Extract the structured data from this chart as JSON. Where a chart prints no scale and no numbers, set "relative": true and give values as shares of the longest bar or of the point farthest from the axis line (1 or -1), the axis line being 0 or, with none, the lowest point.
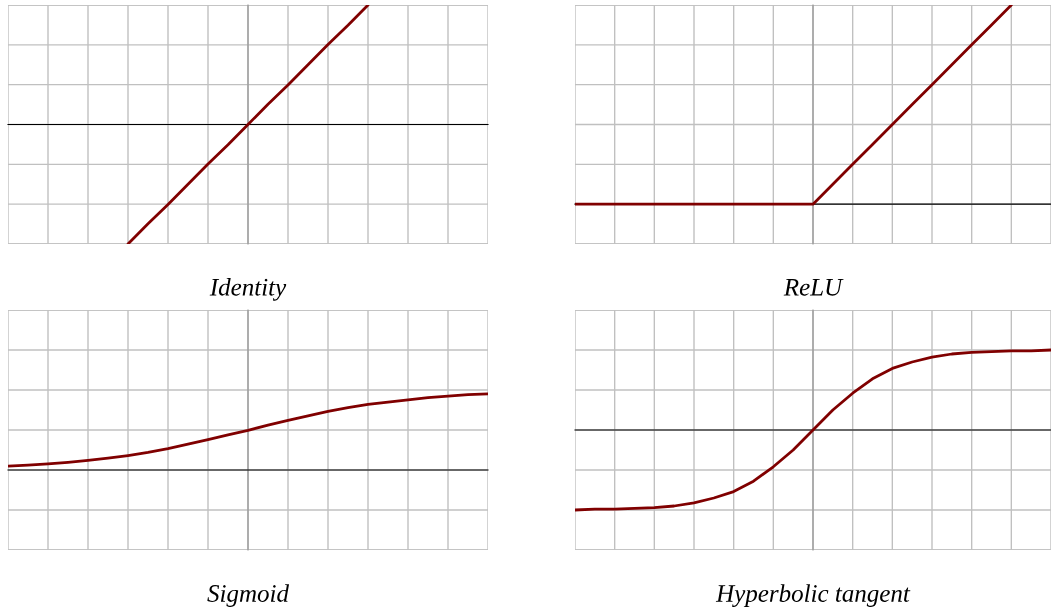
{
  "chart_data": [
    {
      "type": "line",
      "title": "Identity",
      "relative": true,
      "grid": true,
      "tick_labels": false,
      "categories": [
        null,
        null,
        null,
        null,
        null,
        null,
        null,
        null,
        null,
        null,
        null,
        null,
        null,
        null,
        null,
        null,
        null,
        null,
        null,
        null,
        null,
        null,
        null,
        null,
        null
      ],
      "series": [
        {
          "color": "#800000",
          "values": [
            null,
            null,
            null,
            null,
            null,
            null,
            -1,
            -0.83,
            -0.67,
            -0.5,
            -0.33,
            -0.17,
            0,
            0.17,
            0.33,
            0.5,
            0.67,
            0.83,
            1,
            null,
            null,
            null,
            null,
            null,
            null
          ]
        }
      ]
    },
    {
      "type": "line",
      "title": "ReLU",
      "relative": true,
      "grid": true,
      "tick_labels": false,
      "categories": [
        null,
        null,
        null,
        null,
        null,
        null,
        null,
        null,
        null,
        null,
        null,
        null,
        null,
        null,
        null,
        null,
        null,
        null,
        null,
        null,
        null,
        null,
        null,
        null,
        null
      ],
      "series": [
        {
          "color": "#800000",
          "values": [
            0,
            0,
            0,
            0,
            0,
            0,
            0,
            0,
            0,
            0,
            0,
            0,
            0,
            0.1,
            0.2,
            0.3,
            0.4,
            0.5,
            0.6,
            0.7,
            0.8,
            0.9,
            1,
            null,
            null
          ]
        }
      ]
    },
    {
      "type": "line",
      "title": "Sigmoid",
      "relative": true,
      "grid": true,
      "tick_labels": false,
      "categories": [
        null,
        null,
        null,
        null,
        null,
        null,
        null,
        null,
        null,
        null,
        null,
        null,
        null,
        null,
        null,
        null,
        null,
        null,
        null,
        null,
        null,
        null,
        null,
        null,
        null
      ],
      "series": [
        {
          "color": "#800000",
          "values": [
            0.05,
            0.063,
            0.08,
            0.1,
            0.125,
            0.155,
            0.19,
            0.23,
            0.28,
            0.34,
            0.4,
            0.46,
            0.52,
            0.59,
            0.65,
            0.71,
            0.77,
            0.82,
            0.86,
            0.89,
            0.92,
            0.95,
            0.97,
            0.99,
            1
          ]
        }
      ]
    },
    {
      "type": "line",
      "title": "Hyperbolic tangent",
      "relative": true,
      "grid": true,
      "tick_labels": false,
      "categories": [
        null,
        null,
        null,
        null,
        null,
        null,
        null,
        null,
        null,
        null,
        null,
        null,
        null,
        null,
        null,
        null,
        null,
        null,
        null,
        null,
        null,
        null,
        null,
        null,
        null
      ],
      "series": [
        {
          "color": "#800000",
          "values": [
            -1,
            -0.99,
            -0.99,
            -0.98,
            -0.97,
            -0.95,
            -0.91,
            -0.85,
            -0.77,
            -0.64,
            -0.46,
            -0.25,
            0,
            0.25,
            0.46,
            0.64,
            0.77,
            0.85,
            0.91,
            0.95,
            0.97,
            0.98,
            0.99,
            0.99,
            1
          ]
        }
      ]
    }
  ]
}
